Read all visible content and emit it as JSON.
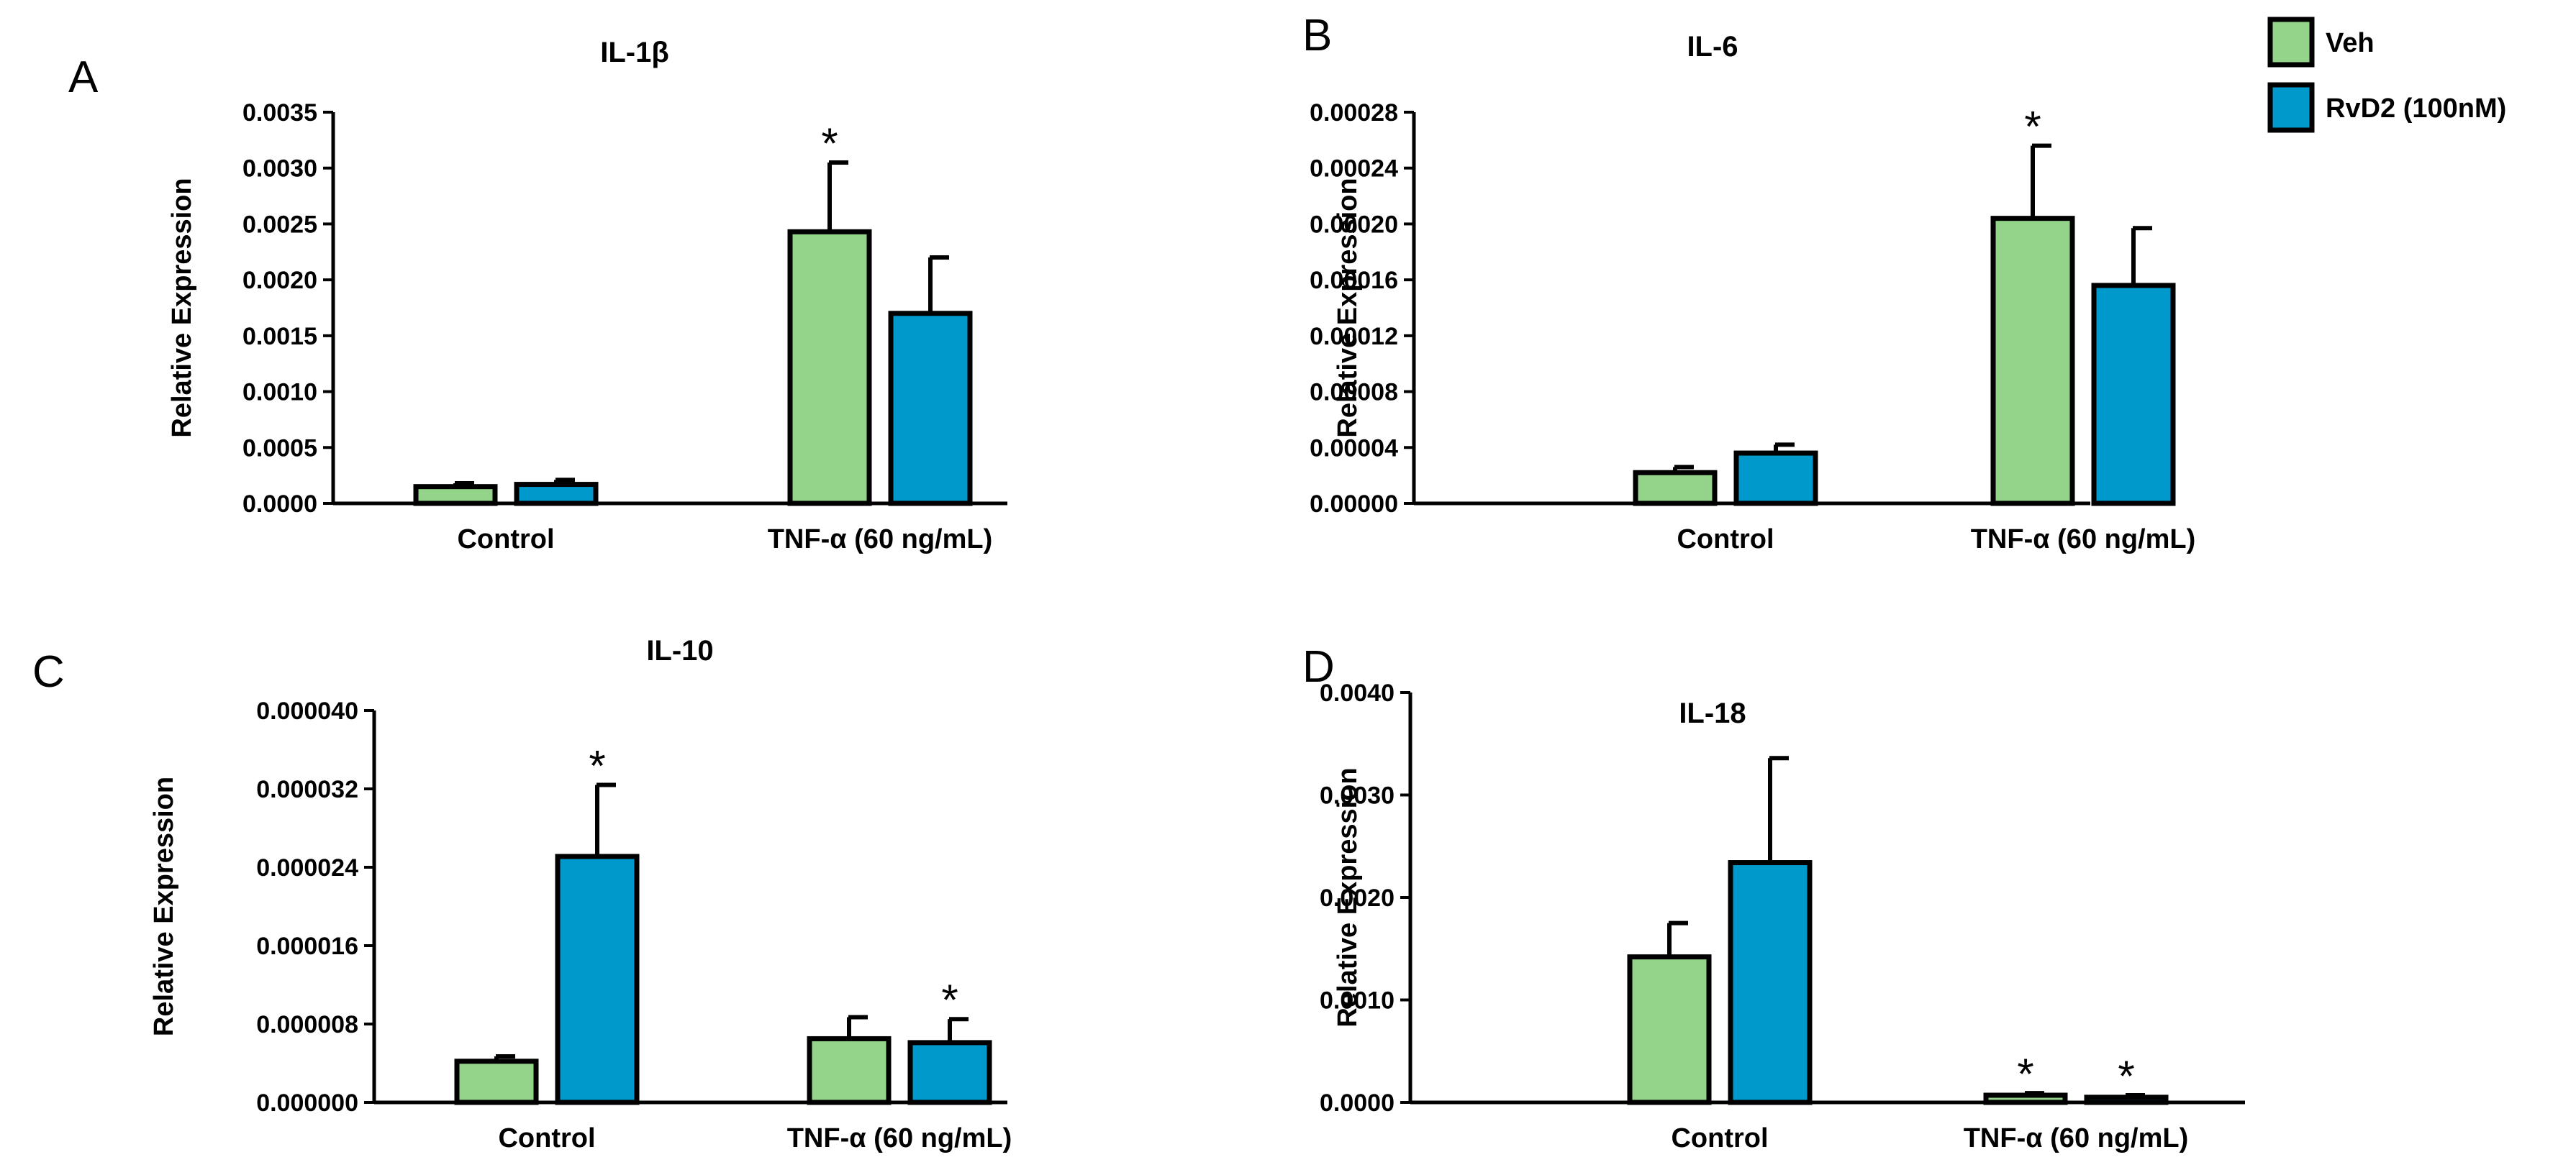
{
  "legend": {
    "items": [
      {
        "label": "Veh",
        "color": "#93D38A"
      },
      {
        "label": "RvD2 (100nM)",
        "color": "#0099CC"
      }
    ]
  },
  "chart_data": [
    {
      "panel": "A",
      "type": "bar",
      "title": "IL-1β",
      "ylabel": "Relative Expression",
      "xlabel": "",
      "categories": [
        "Control",
        "TNF-α (60 ng/mL)"
      ],
      "ylim": [
        0,
        0.0035
      ],
      "ticks": [
        "0.0000",
        "0.0005",
        "0.0010",
        "0.0015",
        "0.0020",
        "0.0025",
        "0.0030",
        "0.0035"
      ],
      "series": [
        {
          "name": "Veh",
          "values": [
            0.00015,
            0.00243
          ],
          "errors": [
            3e-05,
            0.00062
          ],
          "sig": [
            false,
            true
          ]
        },
        {
          "name": "RvD2 (100nM)",
          "values": [
            0.00017,
            0.0017
          ],
          "errors": [
            4e-05,
            0.0005
          ],
          "sig": [
            false,
            false
          ]
        }
      ]
    },
    {
      "panel": "B",
      "type": "bar",
      "title": "IL-6",
      "ylabel": "Relative Expression",
      "xlabel": "",
      "categories": [
        "Control",
        "TNF-α (60 ng/mL)"
      ],
      "ylim": [
        0,
        0.00028
      ],
      "ticks": [
        "0.00000",
        "0.00004",
        "0.00008",
        "0.00012",
        "0.00016",
        "0.00020",
        "0.00024",
        "0.00028"
      ],
      "series": [
        {
          "name": "Veh",
          "values": [
            2.2e-05,
            0.000204
          ],
          "errors": [
            4e-06,
            5.2e-05
          ],
          "sig": [
            false,
            true
          ]
        },
        {
          "name": "RvD2 (100nM)",
          "values": [
            3.6e-05,
            0.000156
          ],
          "errors": [
            6e-06,
            4.1e-05
          ],
          "sig": [
            false,
            false
          ]
        }
      ]
    },
    {
      "panel": "C",
      "type": "bar",
      "title": "IL-10",
      "ylabel": "Relative Expression",
      "xlabel": "",
      "categories": [
        "Control",
        "TNF-α (60 ng/mL)"
      ],
      "ylim": [
        0,
        4e-05
      ],
      "ticks": [
        "0.000000",
        "0.000008",
        "0.000016",
        "0.000024",
        "0.000032",
        "0.000040"
      ],
      "series": [
        {
          "name": "Veh",
          "values": [
            4.2e-06,
            6.5e-06
          ],
          "errors": [
            5e-07,
            2.2e-06
          ],
          "sig": [
            false,
            false
          ]
        },
        {
          "name": "RvD2 (100nM)",
          "values": [
            2.51e-05,
            6.1e-06
          ],
          "errors": [
            7.3e-06,
            2.4e-06
          ],
          "sig": [
            true,
            true
          ]
        }
      ]
    },
    {
      "panel": "D",
      "type": "bar",
      "title": "IL-18",
      "ylabel": "Relative Expression",
      "xlabel": "",
      "categories": [
        "Control",
        "TNF-α (60 ng/mL)"
      ],
      "ylim": [
        0,
        0.004
      ],
      "ticks": [
        "0.0000",
        "0.0010",
        "0.0020",
        "0.0030",
        "0.0040"
      ],
      "series": [
        {
          "name": "Veh",
          "values": [
            0.00142,
            7e-05
          ],
          "errors": [
            0.00033,
            2e-05
          ],
          "sig": [
            false,
            true
          ]
        },
        {
          "name": "RvD2 (100nM)",
          "values": [
            0.00234,
            5e-05
          ],
          "errors": [
            0.00102,
            2e-05
          ],
          "sig": [
            false,
            true
          ]
        }
      ]
    }
  ]
}
